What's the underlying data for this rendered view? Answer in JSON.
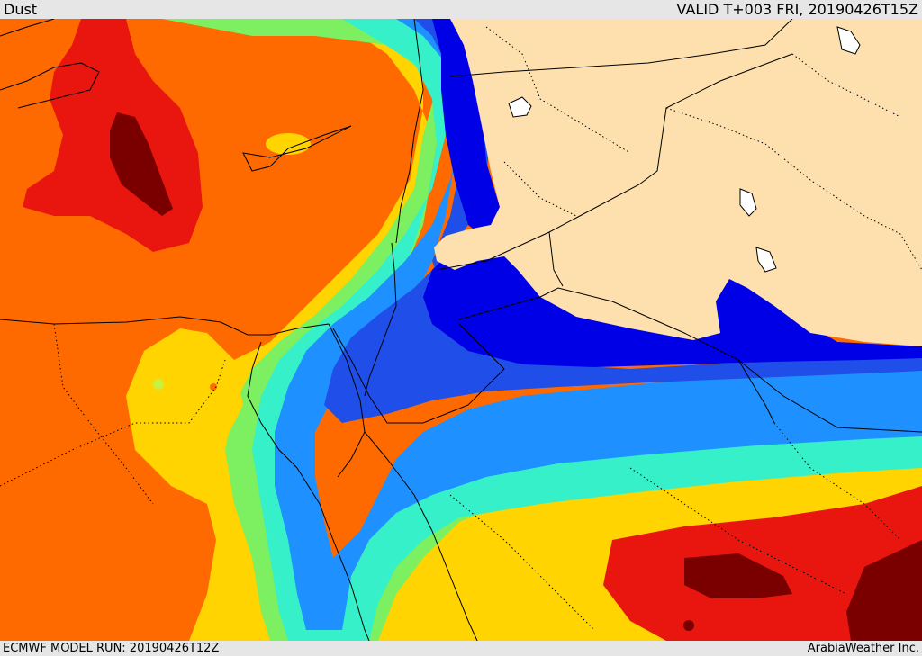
{
  "header": {
    "title": "Dust",
    "valid_time": "VALID T+003 FRI, 20190426T15Z"
  },
  "footer": {
    "model_run": "ECMWF MODEL RUN: 20190426T12Z",
    "credit": "ArabiaWeather Inc."
  },
  "colors": {
    "land_clear": "#fde0ad",
    "level_blue_dark": "#0000e6",
    "level_blue": "#1f4fe8",
    "level_sky": "#1e90ff",
    "level_cyan": "#22e6e6",
    "level_aqua": "#35f0c8",
    "level_green": "#7cf060",
    "level_lime": "#c8f040",
    "level_yellow": "#ffd400",
    "level_orange_light": "#ffa500",
    "level_orange": "#ff6a00",
    "level_red": "#e8160f",
    "level_dark_red": "#7a0000",
    "borders": "#000000"
  }
}
